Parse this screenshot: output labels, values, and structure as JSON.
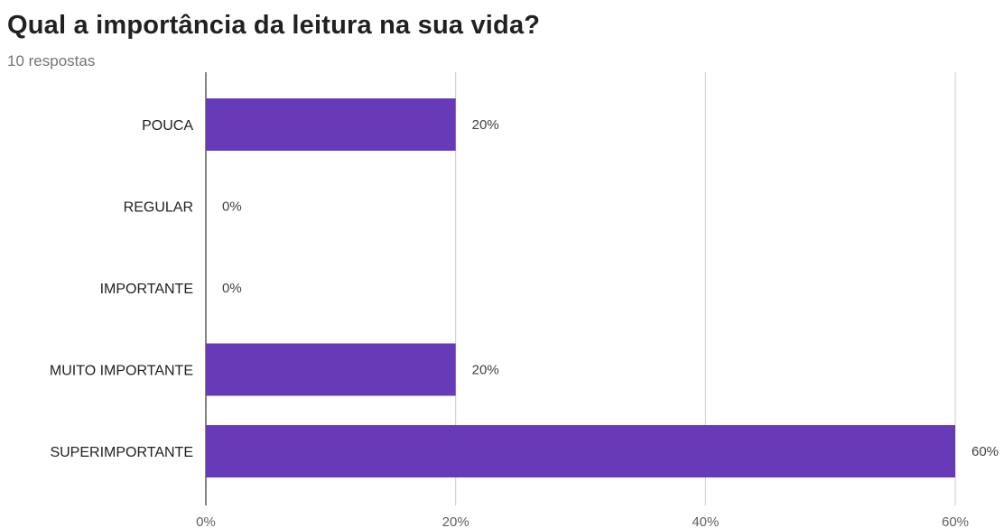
{
  "header": {
    "title": "Qual a importância da leitura na sua vida?",
    "subtitle": "10 respostas"
  },
  "chart_data": {
    "type": "bar",
    "orientation": "horizontal",
    "title": "Qual a importância da leitura na sua vida?",
    "subtitle": "10 respostas",
    "categories": [
      "POUCA",
      "REGULAR",
      "IMPORTANTE",
      "MUITO IMPORTANTE",
      "SUPERIMPORTANTE"
    ],
    "values": [
      20,
      0,
      0,
      20,
      60
    ],
    "value_labels": [
      "20%",
      "0%",
      "0%",
      "20%",
      "60%"
    ],
    "x_ticks": [
      0,
      20,
      40,
      60
    ],
    "x_tick_labels": [
      "0%",
      "20%",
      "40%",
      "60%"
    ],
    "xlim": [
      0,
      60
    ],
    "grid": true,
    "bar_color": "#673ab7",
    "grid_color": "#cccccc",
    "axis_color": "#333333"
  }
}
